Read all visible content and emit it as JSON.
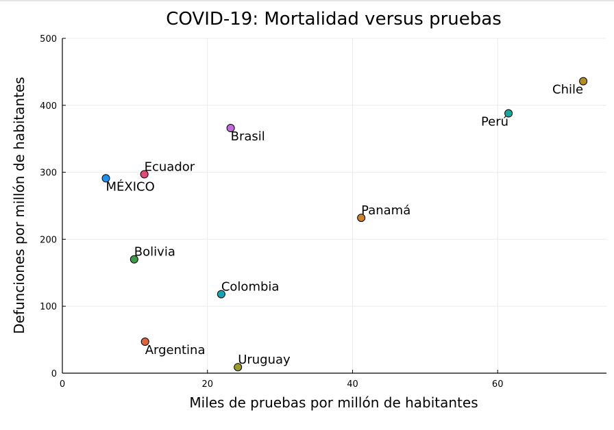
{
  "chart_data": {
    "type": "scatter",
    "title": "COVID-19: Mortalidad versus pruebas",
    "xlabel": "Miles de pruebas por millón de habitantes",
    "ylabel": "Defunciones por millón de habitantes",
    "xlim": [
      0,
      75
    ],
    "ylim": [
      0,
      500
    ],
    "xticks": [
      0,
      20,
      40,
      60
    ],
    "yticks": [
      0,
      100,
      200,
      300,
      400,
      500
    ],
    "grid": true,
    "points": [
      {
        "label": "MÉXICO",
        "x": 6.0,
        "y": 291,
        "color": "#1f8fe8",
        "label_color": "#e8141e",
        "anchor": "below-right"
      },
      {
        "label": "Ecuador",
        "x": 11.3,
        "y": 297,
        "color": "#e24a76",
        "label_color": "#000000",
        "anchor": "above-right"
      },
      {
        "label": "Brasil",
        "x": 23.2,
        "y": 366,
        "color": "#c06ad8",
        "label_color": "#000000",
        "anchor": "below-right"
      },
      {
        "label": "Perú",
        "x": 61.5,
        "y": 388,
        "color": "#12a99b",
        "label_color": "#000000",
        "anchor": "below-left"
      },
      {
        "label": "Chile",
        "x": 71.8,
        "y": 436,
        "color": "#b08e22",
        "label_color": "#000000",
        "anchor": "below-left"
      },
      {
        "label": "Panamá",
        "x": 41.2,
        "y": 232,
        "color": "#c9822a",
        "label_color": "#000000",
        "anchor": "above-right"
      },
      {
        "label": "Bolivia",
        "x": 9.9,
        "y": 170,
        "color": "#3c9c47",
        "label_color": "#000000",
        "anchor": "above-right"
      },
      {
        "label": "Colombia",
        "x": 21.9,
        "y": 118,
        "color": "#10a6b8",
        "label_color": "#000000",
        "anchor": "above-right"
      },
      {
        "label": "Argentina",
        "x": 11.4,
        "y": 47,
        "color": "#e0643a",
        "label_color": "#000000",
        "anchor": "below-right"
      },
      {
        "label": "Uruguay",
        "x": 24.2,
        "y": 9,
        "color": "#9a9a26",
        "label_color": "#000000",
        "anchor": "above-right"
      }
    ]
  }
}
